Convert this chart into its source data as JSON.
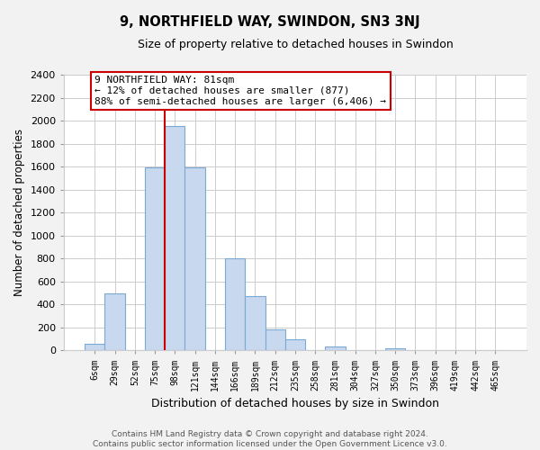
{
  "title": "9, NORTHFIELD WAY, SWINDON, SN3 3NJ",
  "subtitle": "Size of property relative to detached houses in Swindon",
  "xlabel": "Distribution of detached houses by size in Swindon",
  "ylabel": "Number of detached properties",
  "bin_labels": [
    "6sqm",
    "29sqm",
    "52sqm",
    "75sqm",
    "98sqm",
    "121sqm",
    "144sqm",
    "166sqm",
    "189sqm",
    "212sqm",
    "235sqm",
    "258sqm",
    "281sqm",
    "304sqm",
    "327sqm",
    "350sqm",
    "373sqm",
    "396sqm",
    "419sqm",
    "442sqm",
    "465sqm"
  ],
  "bar_values": [
    55,
    500,
    0,
    1590,
    1950,
    1590,
    0,
    800,
    470,
    185,
    95,
    0,
    35,
    0,
    0,
    20,
    0,
    0,
    0,
    0,
    0
  ],
  "bar_color": "#c8d8ee",
  "bar_edge_color": "#7baad4",
  "vline_index": 4,
  "vline_color": "#cc0000",
  "annotation_line1": "9 NORTHFIELD WAY: 81sqm",
  "annotation_line2": "← 12% of detached houses are smaller (877)",
  "annotation_line3": "88% of semi-detached houses are larger (6,406) →",
  "annotation_box_color": "white",
  "annotation_box_edge_color": "#cc0000",
  "ylim": [
    0,
    2400
  ],
  "yticks": [
    0,
    200,
    400,
    600,
    800,
    1000,
    1200,
    1400,
    1600,
    1800,
    2000,
    2200,
    2400
  ],
  "footer_line1": "Contains HM Land Registry data © Crown copyright and database right 2024.",
  "footer_line2": "Contains public sector information licensed under the Open Government Licence v3.0.",
  "bg_color": "#f2f2f2",
  "plot_bg_color": "#ffffff",
  "grid_color": "#cccccc"
}
